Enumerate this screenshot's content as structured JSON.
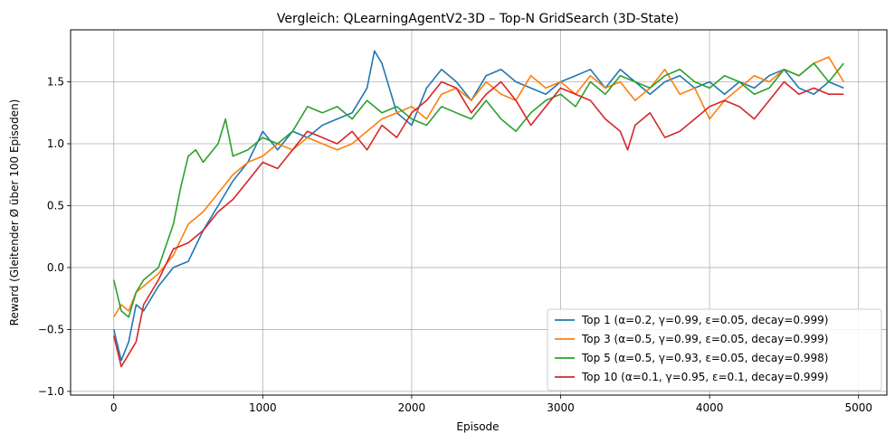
{
  "chart_data": {
    "type": "line",
    "title": "Vergleich: QLearningAgentV2-3D  – Top-N GridSearch (3D-State)",
    "xlabel": "Episode",
    "ylabel": "Reward (Gleitender Ø über 100 Episoden)",
    "xlim": [
      -290,
      5190
    ],
    "ylim": [
      -1.03,
      1.92
    ],
    "xticks": [
      0,
      1000,
      2000,
      3000,
      4000,
      5000
    ],
    "yticks": [
      -1.0,
      -0.5,
      0.0,
      0.5,
      1.0,
      1.5
    ],
    "xtick_labels": [
      "0",
      "1000",
      "2000",
      "3000",
      "4000",
      "5000"
    ],
    "ytick_labels": [
      "−1.0",
      "−0.5",
      "0.0",
      "0.5",
      "1.0",
      "1.5"
    ],
    "grid": true,
    "legend_position": "lower-right",
    "series": [
      {
        "name": "Top 1 (α=0.2, γ=0.99, ε=0.05, decay=0.999)",
        "color": "#1f77b4",
        "x": [
          0,
          50,
          100,
          150,
          200,
          300,
          400,
          500,
          600,
          700,
          800,
          900,
          1000,
          1100,
          1200,
          1300,
          1400,
          1500,
          1600,
          1700,
          1750,
          1800,
          1900,
          2000,
          2100,
          2200,
          2300,
          2400,
          2500,
          2600,
          2700,
          2800,
          2900,
          3000,
          3100,
          3200,
          3300,
          3400,
          3500,
          3600,
          3700,
          3800,
          3900,
          4000,
          4100,
          4200,
          4300,
          4400,
          4500,
          4600,
          4700,
          4800,
          4900
        ],
        "y": [
          -0.5,
          -0.75,
          -0.6,
          -0.3,
          -0.35,
          -0.15,
          0.0,
          0.05,
          0.3,
          0.5,
          0.7,
          0.85,
          1.1,
          0.95,
          1.1,
          1.05,
          1.15,
          1.2,
          1.25,
          1.45,
          1.75,
          1.65,
          1.25,
          1.15,
          1.45,
          1.6,
          1.5,
          1.35,
          1.55,
          1.6,
          1.5,
          1.45,
          1.4,
          1.5,
          1.55,
          1.6,
          1.45,
          1.6,
          1.5,
          1.4,
          1.5,
          1.55,
          1.45,
          1.5,
          1.4,
          1.5,
          1.45,
          1.55,
          1.6,
          1.45,
          1.4,
          1.5,
          1.45
        ]
      },
      {
        "name": "Top 3 (α=0.5, γ=0.99, ε=0.05, decay=0.999)",
        "color": "#ff7f0e",
        "x": [
          0,
          50,
          100,
          150,
          200,
          300,
          400,
          500,
          600,
          700,
          800,
          900,
          1000,
          1100,
          1200,
          1300,
          1400,
          1500,
          1600,
          1700,
          1800,
          1900,
          2000,
          2100,
          2200,
          2300,
          2400,
          2500,
          2600,
          2700,
          2800,
          2900,
          3000,
          3100,
          3200,
          3300,
          3400,
          3500,
          3600,
          3700,
          3800,
          3900,
          4000,
          4100,
          4200,
          4300,
          4400,
          4500,
          4600,
          4700,
          4800,
          4900
        ],
        "y": [
          -0.4,
          -0.3,
          -0.35,
          -0.2,
          -0.15,
          -0.05,
          0.1,
          0.35,
          0.45,
          0.6,
          0.75,
          0.85,
          0.9,
          1.0,
          0.95,
          1.05,
          1.0,
          0.95,
          1.0,
          1.1,
          1.2,
          1.25,
          1.3,
          1.2,
          1.4,
          1.45,
          1.35,
          1.5,
          1.4,
          1.35,
          1.55,
          1.45,
          1.5,
          1.4,
          1.55,
          1.45,
          1.5,
          1.35,
          1.45,
          1.6,
          1.4,
          1.45,
          1.2,
          1.35,
          1.45,
          1.55,
          1.5,
          1.6,
          1.55,
          1.65,
          1.7,
          1.5
        ]
      },
      {
        "name": "Top 5 (α=0.5, γ=0.93, ε=0.05, decay=0.998)",
        "color": "#2ca02c",
        "x": [
          0,
          50,
          100,
          150,
          200,
          300,
          400,
          450,
          500,
          550,
          600,
          700,
          750,
          800,
          900,
          1000,
          1100,
          1200,
          1300,
          1400,
          1500,
          1600,
          1700,
          1800,
          1900,
          2000,
          2100,
          2200,
          2300,
          2400,
          2500,
          2600,
          2700,
          2800,
          2900,
          3000,
          3100,
          3200,
          3300,
          3400,
          3500,
          3600,
          3700,
          3800,
          3900,
          4000,
          4100,
          4200,
          4300,
          4400,
          4500,
          4600,
          4700,
          4800,
          4900
        ],
        "y": [
          -0.1,
          -0.35,
          -0.4,
          -0.2,
          -0.1,
          0.0,
          0.35,
          0.65,
          0.9,
          0.95,
          0.85,
          1.0,
          1.2,
          0.9,
          0.95,
          1.05,
          1.0,
          1.1,
          1.3,
          1.25,
          1.3,
          1.2,
          1.35,
          1.25,
          1.3,
          1.2,
          1.15,
          1.3,
          1.25,
          1.2,
          1.35,
          1.2,
          1.1,
          1.25,
          1.35,
          1.4,
          1.3,
          1.5,
          1.4,
          1.55,
          1.5,
          1.45,
          1.55,
          1.6,
          1.5,
          1.45,
          1.55,
          1.5,
          1.4,
          1.45,
          1.6,
          1.55,
          1.65,
          1.5,
          1.65
        ]
      },
      {
        "name": "Top 10 (α=0.1, γ=0.95, ε=0.1, decay=0.999)",
        "color": "#d62728",
        "x": [
          0,
          50,
          100,
          150,
          200,
          300,
          400,
          500,
          600,
          700,
          800,
          900,
          1000,
          1100,
          1200,
          1300,
          1400,
          1500,
          1600,
          1700,
          1800,
          1900,
          2000,
          2100,
          2200,
          2300,
          2400,
          2500,
          2600,
          2700,
          2800,
          2900,
          3000,
          3100,
          3200,
          3300,
          3400,
          3450,
          3500,
          3600,
          3700,
          3800,
          3900,
          4000,
          4100,
          4200,
          4300,
          4400,
          4500,
          4600,
          4700,
          4800,
          4900
        ],
        "y": [
          -0.55,
          -0.8,
          -0.7,
          -0.6,
          -0.3,
          -0.1,
          0.15,
          0.2,
          0.3,
          0.45,
          0.55,
          0.7,
          0.85,
          0.8,
          0.95,
          1.1,
          1.05,
          1.0,
          1.1,
          0.95,
          1.15,
          1.05,
          1.25,
          1.35,
          1.5,
          1.45,
          1.25,
          1.4,
          1.5,
          1.35,
          1.15,
          1.3,
          1.45,
          1.4,
          1.35,
          1.2,
          1.1,
          0.95,
          1.15,
          1.25,
          1.05,
          1.1,
          1.2,
          1.3,
          1.35,
          1.3,
          1.2,
          1.35,
          1.5,
          1.4,
          1.45,
          1.4,
          1.4
        ]
      }
    ]
  }
}
